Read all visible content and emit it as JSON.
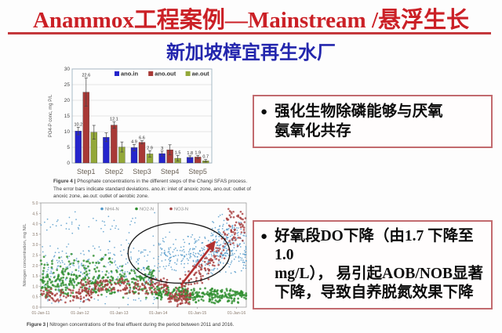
{
  "slide": {
    "title": "Anammox工程案例—Mainstream /悬浮生长",
    "subtitle": "新加坡樟宜再生水厂",
    "colors": {
      "title_red": "#cb2026",
      "subtitle_blue": "#2326ad",
      "callout_border": "#c26a6e"
    }
  },
  "callouts": [
    {
      "bullet": "●",
      "lines": [
        "强化生物除磷能够与厌氧",
        "氨氧化共存"
      ]
    },
    {
      "bullet": "●",
      "lines": [
        "好氧段DO下降（由1.7 下降至1.0",
        "mg/L）， 易引起AOB/NOB显著",
        "下降，导致自养脱氮效果下降"
      ]
    }
  ],
  "chart_data": [
    {
      "type": "bar",
      "title": "",
      "xlabel": "",
      "ylabel": "PO4-P conc, mg P/L",
      "ylim": [
        0,
        30
      ],
      "yticks": [
        0,
        5,
        10,
        15,
        20,
        25,
        30
      ],
      "grid": true,
      "legend_position": "top-right-inside",
      "categories": [
        "Step1",
        "Step2",
        "Step3",
        "Step4",
        "Step5"
      ],
      "series": [
        {
          "name": "ano.in",
          "color": "#2525cc",
          "values": [
            10.2,
            8.2,
            4.9,
            3.0,
            1.8
          ],
          "errors": [
            1.2,
            1.4,
            1.0,
            0.8,
            0.5
          ],
          "labels": [
            "10.2",
            "",
            "4.9",
            "3",
            "1.8"
          ]
        },
        {
          "name": "ano.out",
          "color": "#a83936",
          "values": [
            22.6,
            12.1,
            6.6,
            4.2,
            1.9
          ],
          "errors": [
            4.5,
            1.0,
            0.5,
            1.6,
            0.5
          ],
          "labels": [
            "22.6",
            "12.1",
            "6.6",
            "",
            "1.9"
          ]
        },
        {
          "name": "ae.out",
          "color": "#93a839",
          "values": [
            9.8,
            5.1,
            2.9,
            1.5,
            0.7
          ],
          "errors": [
            2.2,
            1.6,
            1.0,
            0.9,
            0.4
          ],
          "labels": [
            "",
            "",
            "2.9",
            "1.5",
            "0.7"
          ]
        }
      ],
      "caption_label": "Figure 4 |",
      "caption_text": "Phosphate concentrations in the different steps of the Changi SFAS process. The error bars indicate standard deviations. ano.in: inlet of anoxic zone, ano.out: outlet of anoxic zone, ae.out: outlet of aerobic zone."
    },
    {
      "type": "scatter",
      "title": "",
      "xlabel": "",
      "ylabel": "Nitrogen concentration, mg N/L",
      "ylim": [
        0,
        5
      ],
      "yticks": [
        0,
        0.5,
        1,
        1.5,
        2,
        2.5,
        3,
        3.5,
        4,
        4.5,
        5
      ],
      "xticks": [
        "01-Jan-11",
        "01-Jan-12",
        "01-Jan-13",
        "01-Jan-14",
        "01-Jan-15",
        "01-Jan-16"
      ],
      "xmax": 5.25,
      "grid": false,
      "legend_position": "top-center-inside",
      "series": [
        {
          "name": "NH4-N",
          "color": "#4d96c8",
          "r": 0.85,
          "clusters": [
            {
              "x": [
                0,
                3.0
              ],
              "y": [
                0.5,
                3.3
              ],
              "n": 260
            },
            {
              "x": [
                0,
                3.0
              ],
              "y": [
                3.2,
                4.7
              ],
              "n": 45
            },
            {
              "x": [
                0,
                3.0
              ],
              "y": [
                0.1,
                0.6
              ],
              "n": 30
            },
            {
              "x": [
                3.0,
                5.25
              ],
              "y": [
                1.4,
                3.6
              ],
              "n": 300
            },
            {
              "x": [
                4.35,
                5.25
              ],
              "y": [
                2.4,
                4.6
              ],
              "n": 110
            }
          ]
        },
        {
          "name": "NO2-N",
          "color": "#2f8f2f",
          "r": 1.4,
          "clusters": [
            {
              "x": [
                0,
                2.95
              ],
              "y": [
                0.4,
                2.0
              ],
              "n": 330
            },
            {
              "x": [
                0,
                2.0
              ],
              "y": [
                1.6,
                2.6
              ],
              "n": 40
            },
            {
              "x": [
                2.95,
                3.7
              ],
              "y": [
                0.25,
                1.1
              ],
              "n": 90
            },
            {
              "x": [
                3.7,
                5.25
              ],
              "y": [
                0.15,
                0.95
              ],
              "n": 190
            }
          ]
        },
        {
          "name": "NO3-N",
          "color": "#a84040",
          "r": 1.3,
          "clusters": [
            {
              "x": [
                0,
                1.3
              ],
              "y": [
                0.15,
                0.95
              ],
              "n": 90
            },
            {
              "x": [
                1.0,
                3.25
              ],
              "y": [
                0.5,
                1.45
              ],
              "n": 190
            },
            {
              "x": [
                3.25,
                3.85
              ],
              "y": [
                0.05,
                0.75
              ],
              "n": 70
            },
            {
              "x": [
                3.45,
                5.25
              ],
              "rise": [
                0.5,
                4.0
              ],
              "spread": 0.8,
              "n": 140
            },
            {
              "x": [
                4.75,
                5.25
              ],
              "y": [
                3.4,
                4.9
              ],
              "n": 28
            }
          ]
        }
      ],
      "annotations": {
        "vline_x": 3,
        "ellipse": {
          "cx": 3.53,
          "cy": 2.6,
          "rx": 1.3,
          "ry": 1.45
        },
        "arrow": {
          "x1": 3.58,
          "y1": 1.05,
          "x2": 4.45,
          "y2": 3.15,
          "color": "#b03030"
        }
      },
      "caption_label": "Figure 3 |",
      "caption_text": "Nitrogen concentrations of the final effluent during the period between 2011 and 2016."
    }
  ]
}
